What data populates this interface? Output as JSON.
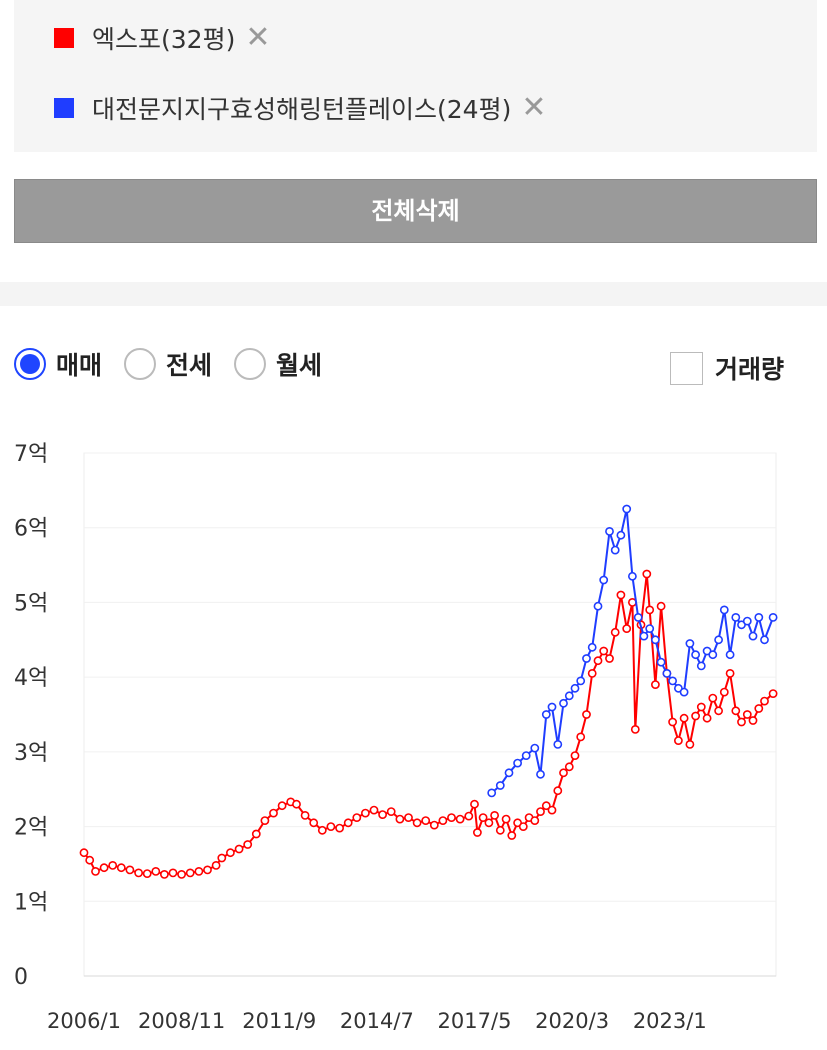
{
  "legend": [
    {
      "label": "엑스포(32평)",
      "color": "#ff0000"
    },
    {
      "label": "대전문지지구효성해링턴플레이스(24평)",
      "color": "#1f3dff"
    }
  ],
  "close_symbol": "✕",
  "clear_all_label": "전체삭제",
  "trade_types": [
    {
      "label": "매매",
      "selected": true
    },
    {
      "label": "전세",
      "selected": false
    },
    {
      "label": "월세",
      "selected": false
    }
  ],
  "volume_label": "거래량",
  "chart_data": {
    "type": "line",
    "y_unit": "억",
    "ylim": [
      0,
      7
    ],
    "y_ticks": [
      "0",
      "1억",
      "2억",
      "3억",
      "4억",
      "5억",
      "6억",
      "7억"
    ],
    "x_ticks": [
      "2006/1",
      "2008/11",
      "2011/9",
      "2014/7",
      "2017/5",
      "2020/3",
      "2023/1"
    ],
    "xlim": [
      "2006-01",
      "2026-02"
    ],
    "grid": true,
    "series": [
      {
        "name": "엑스포(32평)",
        "color": "#ff0000",
        "points": [
          [
            "2006-01",
            1.65
          ],
          [
            "2006-03",
            1.55
          ],
          [
            "2006-05",
            1.4
          ],
          [
            "2006-08",
            1.45
          ],
          [
            "2006-11",
            1.48
          ],
          [
            "2007-02",
            1.45
          ],
          [
            "2007-05",
            1.42
          ],
          [
            "2007-08",
            1.38
          ],
          [
            "2007-11",
            1.37
          ],
          [
            "2008-02",
            1.4
          ],
          [
            "2008-05",
            1.36
          ],
          [
            "2008-08",
            1.38
          ],
          [
            "2008-11",
            1.36
          ],
          [
            "2009-02",
            1.38
          ],
          [
            "2009-05",
            1.4
          ],
          [
            "2009-08",
            1.42
          ],
          [
            "2009-11",
            1.48
          ],
          [
            "2010-01",
            1.58
          ],
          [
            "2010-04",
            1.65
          ],
          [
            "2010-07",
            1.7
          ],
          [
            "2010-10",
            1.76
          ],
          [
            "2011-01",
            1.9
          ],
          [
            "2011-04",
            2.08
          ],
          [
            "2011-07",
            2.18
          ],
          [
            "2011-10",
            2.28
          ],
          [
            "2012-01",
            2.33
          ],
          [
            "2012-03",
            2.3
          ],
          [
            "2012-06",
            2.15
          ],
          [
            "2012-09",
            2.05
          ],
          [
            "2012-12",
            1.95
          ],
          [
            "2013-03",
            2.0
          ],
          [
            "2013-06",
            1.98
          ],
          [
            "2013-09",
            2.05
          ],
          [
            "2013-12",
            2.12
          ],
          [
            "2014-03",
            2.18
          ],
          [
            "2014-06",
            2.22
          ],
          [
            "2014-09",
            2.16
          ],
          [
            "2014-12",
            2.2
          ],
          [
            "2015-03",
            2.1
          ],
          [
            "2015-06",
            2.12
          ],
          [
            "2015-09",
            2.05
          ],
          [
            "2015-12",
            2.08
          ],
          [
            "2016-03",
            2.02
          ],
          [
            "2016-06",
            2.08
          ],
          [
            "2016-09",
            2.12
          ],
          [
            "2016-12",
            2.1
          ],
          [
            "2017-03",
            2.14
          ],
          [
            "2017-05",
            2.3
          ],
          [
            "2017-06",
            1.92
          ],
          [
            "2017-08",
            2.12
          ],
          [
            "2017-10",
            2.05
          ],
          [
            "2017-12",
            2.15
          ],
          [
            "2018-02",
            1.95
          ],
          [
            "2018-04",
            2.1
          ],
          [
            "2018-06",
            1.88
          ],
          [
            "2018-08",
            2.05
          ],
          [
            "2018-10",
            2.0
          ],
          [
            "2018-12",
            2.12
          ],
          [
            "2019-02",
            2.08
          ],
          [
            "2019-04",
            2.2
          ],
          [
            "2019-06",
            2.28
          ],
          [
            "2019-08",
            2.22
          ],
          [
            "2019-10",
            2.48
          ],
          [
            "2019-12",
            2.72
          ],
          [
            "2020-02",
            2.8
          ],
          [
            "2020-04",
            2.95
          ],
          [
            "2020-06",
            3.2
          ],
          [
            "2020-08",
            3.5
          ],
          [
            "2020-10",
            4.05
          ],
          [
            "2020-12",
            4.22
          ],
          [
            "2021-02",
            4.35
          ],
          [
            "2021-04",
            4.25
          ],
          [
            "2021-06",
            4.6
          ],
          [
            "2021-08",
            5.1
          ],
          [
            "2021-10",
            4.65
          ],
          [
            "2021-12",
            5.0
          ],
          [
            "2022-01",
            3.3
          ],
          [
            "2022-03",
            4.7
          ],
          [
            "2022-05",
            5.38
          ],
          [
            "2022-06",
            4.9
          ],
          [
            "2022-08",
            3.9
          ],
          [
            "2022-10",
            4.95
          ],
          [
            "2022-12",
            4.05
          ],
          [
            "2023-02",
            3.4
          ],
          [
            "2023-04",
            3.15
          ],
          [
            "2023-06",
            3.45
          ],
          [
            "2023-08",
            3.1
          ],
          [
            "2023-10",
            3.48
          ],
          [
            "2023-12",
            3.6
          ],
          [
            "2024-02",
            3.45
          ],
          [
            "2024-04",
            3.72
          ],
          [
            "2024-06",
            3.55
          ],
          [
            "2024-08",
            3.8
          ],
          [
            "2024-10",
            4.05
          ],
          [
            "2024-12",
            3.55
          ],
          [
            "2025-02",
            3.4
          ],
          [
            "2025-04",
            3.5
          ],
          [
            "2025-06",
            3.42
          ],
          [
            "2025-08",
            3.58
          ],
          [
            "2025-10",
            3.68
          ],
          [
            "2026-01",
            3.78
          ]
        ]
      },
      {
        "name": "대전문지지구효성해링턴플레이스(24평)",
        "color": "#1f3dff",
        "points": [
          [
            "2017-11",
            2.45
          ],
          [
            "2018-02",
            2.55
          ],
          [
            "2018-05",
            2.72
          ],
          [
            "2018-08",
            2.85
          ],
          [
            "2018-11",
            2.95
          ],
          [
            "2019-02",
            3.05
          ],
          [
            "2019-04",
            2.7
          ],
          [
            "2019-06",
            3.5
          ],
          [
            "2019-08",
            3.6
          ],
          [
            "2019-10",
            3.1
          ],
          [
            "2019-12",
            3.65
          ],
          [
            "2020-02",
            3.75
          ],
          [
            "2020-04",
            3.85
          ],
          [
            "2020-06",
            3.95
          ],
          [
            "2020-08",
            4.25
          ],
          [
            "2020-10",
            4.4
          ],
          [
            "2020-12",
            4.95
          ],
          [
            "2021-02",
            5.3
          ],
          [
            "2021-04",
            5.95
          ],
          [
            "2021-06",
            5.7
          ],
          [
            "2021-08",
            5.9
          ],
          [
            "2021-10",
            6.25
          ],
          [
            "2021-12",
            5.35
          ],
          [
            "2022-02",
            4.8
          ],
          [
            "2022-04",
            4.55
          ],
          [
            "2022-06",
            4.65
          ],
          [
            "2022-08",
            4.5
          ],
          [
            "2022-10",
            4.2
          ],
          [
            "2022-12",
            4.05
          ],
          [
            "2023-02",
            3.95
          ],
          [
            "2023-04",
            3.85
          ],
          [
            "2023-06",
            3.8
          ],
          [
            "2023-08",
            4.45
          ],
          [
            "2023-10",
            4.3
          ],
          [
            "2023-12",
            4.15
          ],
          [
            "2024-02",
            4.35
          ],
          [
            "2024-04",
            4.3
          ],
          [
            "2024-06",
            4.5
          ],
          [
            "2024-08",
            4.9
          ],
          [
            "2024-10",
            4.3
          ],
          [
            "2024-12",
            4.8
          ],
          [
            "2025-02",
            4.7
          ],
          [
            "2025-04",
            4.75
          ],
          [
            "2025-06",
            4.55
          ],
          [
            "2025-08",
            4.8
          ],
          [
            "2025-10",
            4.5
          ],
          [
            "2026-01",
            4.8
          ]
        ]
      }
    ]
  }
}
